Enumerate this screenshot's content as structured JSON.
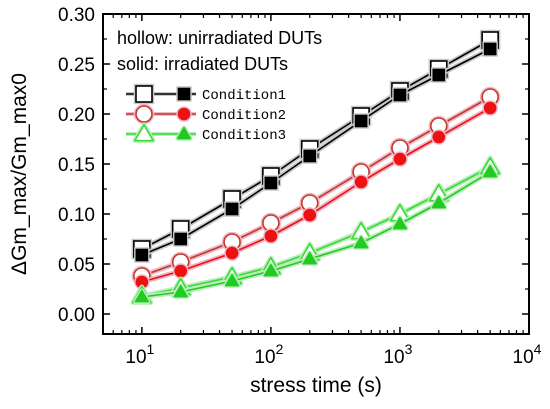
{
  "chart_data": {
    "type": "scatter",
    "title": "",
    "xlabel": "stress time (s)",
    "ylabel": "ΔGm_max/Gm_max0",
    "xscale": "log",
    "xlim": [
      5,
      10000
    ],
    "ylim": [
      -0.02,
      0.3
    ],
    "x_ticks": [
      {
        "value": 10,
        "base": "10",
        "exp": "1"
      },
      {
        "value": 100,
        "base": "10",
        "exp": "2"
      },
      {
        "value": 1000,
        "base": "10",
        "exp": "3"
      },
      {
        "value": 10000,
        "base": "10",
        "exp": "4"
      }
    ],
    "y_ticks": [
      {
        "value": 0.0,
        "label": "0.00"
      },
      {
        "value": 0.05,
        "label": "0.05"
      },
      {
        "value": 0.1,
        "label": "0.10"
      },
      {
        "value": 0.15,
        "label": "0.15"
      },
      {
        "value": 0.2,
        "label": "0.20"
      },
      {
        "value": 0.25,
        "label": "0.25"
      },
      {
        "value": 0.3,
        "label": "0.30"
      }
    ],
    "annotations": [
      "hollow: unirradiated DUTs",
      "solid: irradiated DUTs"
    ],
    "legend_position": "top-left",
    "grid": false,
    "x": [
      10,
      20,
      50,
      100,
      200,
      500,
      1000,
      2000,
      5000
    ],
    "series": [
      {
        "name": "Condition1",
        "condition": "Condition1",
        "state": "unirradiated",
        "marker": "square",
        "filled": false,
        "color": "#000000",
        "outline": "#000000",
        "halo": "#c9c9c9",
        "values": [
          0.065,
          0.085,
          0.115,
          0.138,
          0.165,
          0.198,
          0.223,
          0.245,
          0.274
        ]
      },
      {
        "name": "Condition1",
        "condition": "Condition1",
        "state": "irradiated",
        "marker": "square",
        "filled": true,
        "color": "#000000",
        "outline": "#000000",
        "halo": "#c9c9c9",
        "values": [
          0.059,
          0.075,
          0.105,
          0.131,
          0.158,
          0.193,
          0.219,
          0.239,
          0.265
        ]
      },
      {
        "name": "Condition2",
        "condition": "Condition2",
        "state": "unirradiated",
        "marker": "circle",
        "filled": false,
        "color": "#c0392b",
        "outline": "#c0392b",
        "halo": "#f0b7c7",
        "values": [
          0.038,
          0.052,
          0.072,
          0.091,
          0.111,
          0.142,
          0.166,
          0.188,
          0.217
        ]
      },
      {
        "name": "Condition2",
        "condition": "Condition2",
        "state": "irradiated",
        "marker": "circle",
        "filled": true,
        "color": "#ee1111",
        "outline": "#ee1111",
        "halo": "#f0b7c7",
        "values": [
          0.032,
          0.043,
          0.061,
          0.078,
          0.099,
          0.132,
          0.155,
          0.177,
          0.206
        ]
      },
      {
        "name": "Condition3",
        "condition": "Condition3",
        "state": "unirradiated",
        "marker": "triangle",
        "filled": false,
        "color": "#33dd33",
        "outline": "#33dd33",
        "halo": "#bcecbc",
        "values": [
          0.018,
          0.026,
          0.037,
          0.047,
          0.061,
          0.082,
          0.1,
          0.12,
          0.147
        ]
      },
      {
        "name": "Condition3",
        "condition": "Condition3",
        "state": "irradiated",
        "marker": "triangle",
        "filled": true,
        "color": "#1fcc1f",
        "outline": "#1fcc1f",
        "halo": "#bcecbc",
        "values": [
          0.017,
          0.022,
          0.033,
          0.043,
          0.055,
          0.071,
          0.09,
          0.111,
          0.142
        ]
      }
    ]
  }
}
